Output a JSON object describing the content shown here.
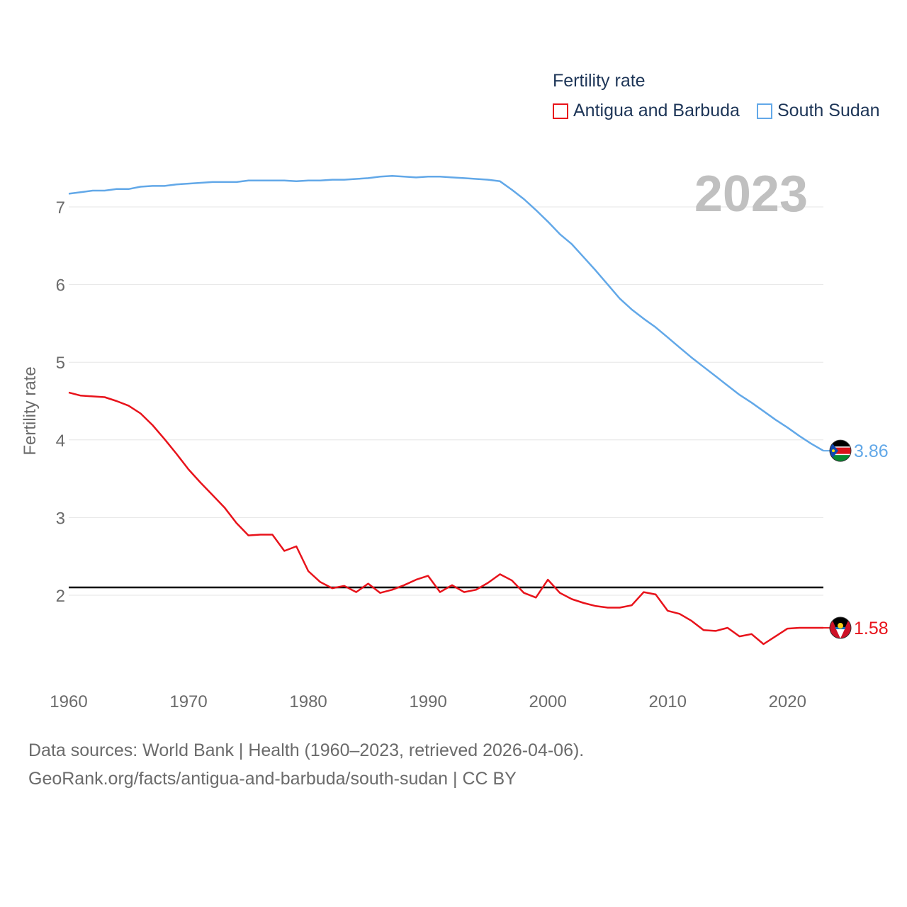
{
  "legend": {
    "title": "Fertility rate",
    "items": [
      {
        "label": "Antigua and Barbuda",
        "color": "#e8131b"
      },
      {
        "label": "South Sudan",
        "color": "#62a8e8"
      }
    ]
  },
  "source": {
    "line1": "Data sources: World Bank | Health (1960–2023, retrieved 2026-04-06).",
    "line2": "GeoRank.org/facts/antigua-and-barbuda/south-sudan | CC BY"
  },
  "chart_data": {
    "type": "line",
    "title": "Fertility rate",
    "year_label": "2023",
    "ylabel": "Fertility rate",
    "xlabel": "",
    "xlim": [
      1960,
      2023
    ],
    "ylim": [
      1.0,
      7.4
    ],
    "x_ticks": [
      1960,
      1970,
      1980,
      1990,
      2000,
      2010,
      2020
    ],
    "y_ticks": [
      2,
      3,
      4,
      5,
      6,
      7
    ],
    "reference_line": {
      "value": 2.1,
      "color": "#000000"
    },
    "x": [
      1960,
      1961,
      1962,
      1963,
      1964,
      1965,
      1966,
      1967,
      1968,
      1969,
      1970,
      1971,
      1972,
      1973,
      1974,
      1975,
      1976,
      1977,
      1978,
      1979,
      1980,
      1981,
      1982,
      1983,
      1984,
      1985,
      1986,
      1987,
      1988,
      1989,
      1990,
      1991,
      1992,
      1993,
      1994,
      1995,
      1996,
      1997,
      1998,
      1999,
      2000,
      2001,
      2002,
      2003,
      2004,
      2005,
      2006,
      2007,
      2008,
      2009,
      2010,
      2011,
      2012,
      2013,
      2014,
      2015,
      2016,
      2017,
      2018,
      2019,
      2020,
      2021,
      2022,
      2023
    ],
    "series": [
      {
        "name": "Antigua and Barbuda",
        "color": "#e8131b",
        "end_label": "1.58",
        "values": [
          4.61,
          4.57,
          4.56,
          4.55,
          4.5,
          4.44,
          4.34,
          4.19,
          4.01,
          3.82,
          3.62,
          3.45,
          3.29,
          3.13,
          2.93,
          2.77,
          2.78,
          2.78,
          2.57,
          2.63,
          2.31,
          2.17,
          2.09,
          2.12,
          2.04,
          2.15,
          2.03,
          2.07,
          2.13,
          2.2,
          2.25,
          2.04,
          2.13,
          2.04,
          2.07,
          2.16,
          2.27,
          2.19,
          2.03,
          1.97,
          2.2,
          2.03,
          1.95,
          1.9,
          1.86,
          1.84,
          1.84,
          1.87,
          2.04,
          2.01,
          1.8,
          1.76,
          1.67,
          1.55,
          1.54,
          1.58,
          1.47,
          1.5,
          1.37,
          1.47,
          1.57,
          1.58,
          1.58,
          1.58
        ]
      },
      {
        "name": "South Sudan",
        "color": "#62a8e8",
        "end_label": "3.86",
        "values": [
          7.17,
          7.19,
          7.21,
          7.21,
          7.23,
          7.23,
          7.26,
          7.27,
          7.27,
          7.29,
          7.3,
          7.31,
          7.32,
          7.32,
          7.32,
          7.34,
          7.34,
          7.34,
          7.34,
          7.33,
          7.34,
          7.34,
          7.35,
          7.35,
          7.36,
          7.37,
          7.39,
          7.4,
          7.39,
          7.38,
          7.39,
          7.39,
          7.38,
          7.37,
          7.36,
          7.35,
          7.33,
          7.22,
          7.1,
          6.96,
          6.81,
          6.65,
          6.52,
          6.35,
          6.18,
          6.0,
          5.82,
          5.68,
          5.56,
          5.45,
          5.32,
          5.19,
          5.06,
          4.94,
          4.82,
          4.7,
          4.58,
          4.48,
          4.37,
          4.26,
          4.16,
          4.05,
          3.95,
          3.86
        ]
      }
    ]
  }
}
